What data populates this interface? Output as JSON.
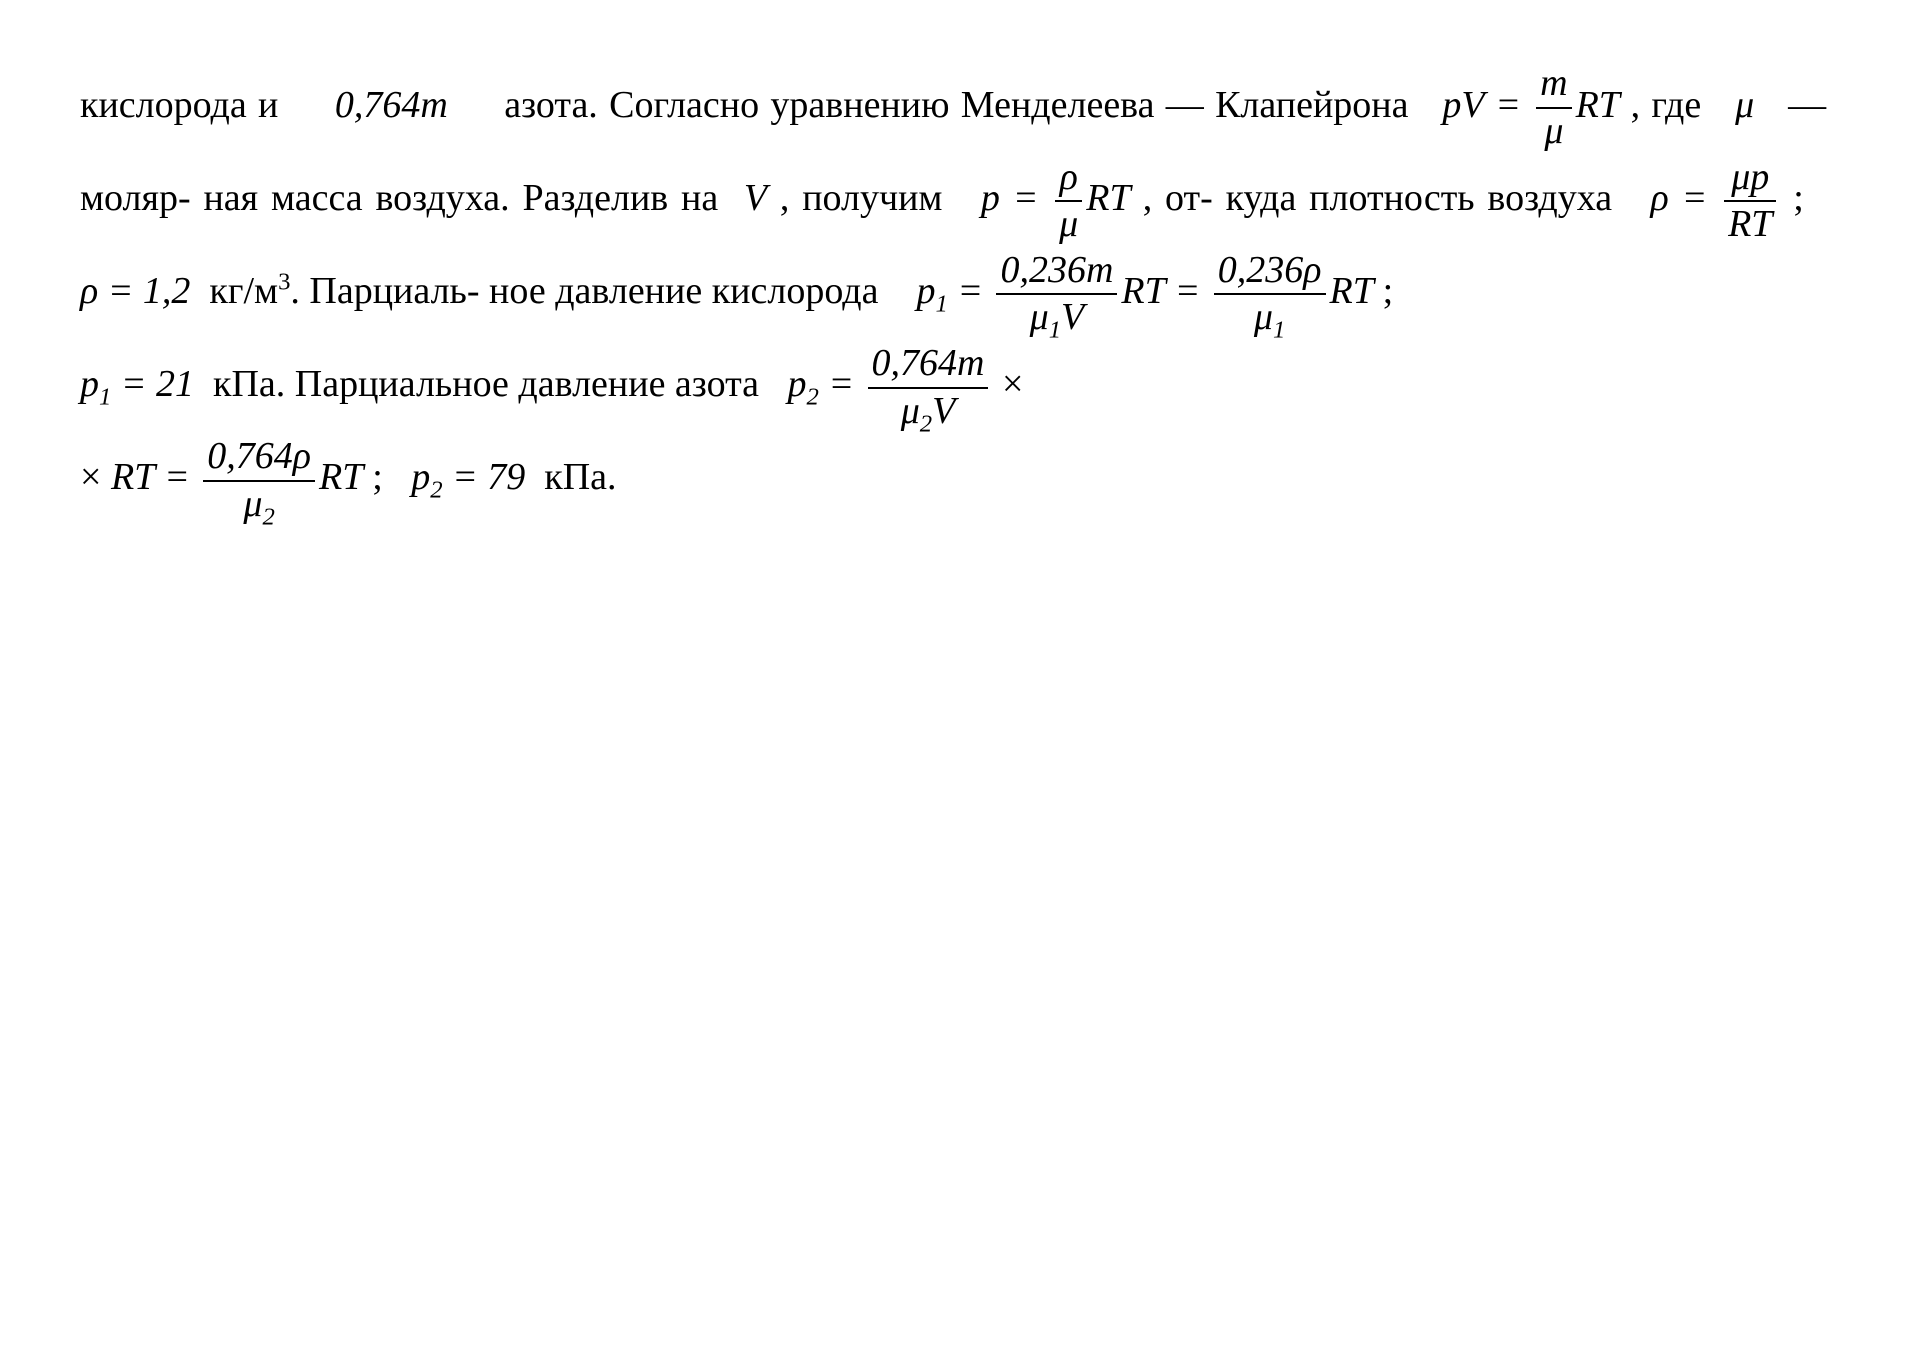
{
  "document": {
    "type": "physics-textbook-excerpt",
    "language": "ru",
    "background_color": "#ffffff",
    "text_color": "#000000",
    "font_family": "Times New Roman",
    "font_size_pt": 28,
    "line_spacing": 2.4,
    "text_align": "justify"
  },
  "t": {
    "line1a": "кислорода и",
    "c_oxygen": "0,764",
    "var_m": "m",
    "line1b": "азота. Согласно уравнению",
    "line2a": "Менделеева — Клапейрона",
    "eq1_lhs": "pV",
    "eq": "=",
    "eq1_num": "m",
    "eq1_den": "μ",
    "eq1_rhs": "RT",
    "line2b": ", где",
    "mu": "μ",
    "line2c": "— моляр-",
    "line3a": "ная масса воздуха. Разделив на",
    "V": "V",
    "line3b": ", получим",
    "eq2_lhs": "p",
    "eq2_num": "ρ",
    "eq2_den": "μ",
    "eq2_rhs": "RT",
    "line3c": ", от-",
    "line4a": "куда плотность воздуха",
    "eq3_lhs": "ρ",
    "eq3_num": "μp",
    "eq3_den": "RT",
    "semicolon": ";",
    "rho_val_lhs": "ρ",
    "rho_val": "1,2",
    "rho_unit": "кг/м",
    "cubed": "3",
    "line4b": ". Парциаль-",
    "line5a": "ное давление кислорода",
    "p1": "p",
    "sub1": "1",
    "eq4_num1": "0,236m",
    "eq4_den1_mu": "μ",
    "eq4_den1_V": "V",
    "eq4_rt": "RT",
    "eq4_num2": "0,236ρ",
    "eq4_den2": "μ",
    "line6_p1val": "21",
    "kpa": "кПа",
    "line6a": ". Парциальное давление азота",
    "p2": "p",
    "sub2": "2",
    "eq5_num": "0,764m",
    "eq5_den_mu": "μ",
    "eq5_den_V": "V",
    "times": "×",
    "line7_rt": "RT",
    "eq6_num": "0,764ρ",
    "eq6_den": "μ",
    "p2_val": "79",
    "period": "."
  }
}
